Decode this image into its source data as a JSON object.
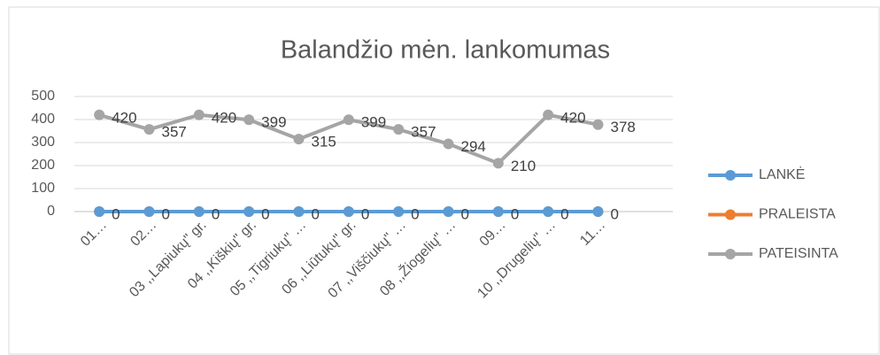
{
  "chart_data": {
    "type": "line",
    "title": "Balandžio mėn. lankomumas",
    "categories": [
      "01…",
      "02…",
      "03 ,,Lapiukų\" gr.",
      "04 ,,Kiškių\" gr.",
      "05 ,,Tigriukų\" …",
      "06 ,,Liūtukų\" gr.",
      "07 ,,Viščiukų\" …",
      "08 ,,Žiogelių\" …",
      "09…",
      "10 ,,Drugelių\" …",
      "11…",
      null
    ],
    "series": [
      {
        "name": "LANKĖ",
        "color": "#5b9bd5",
        "values": [
          0,
          0,
          0,
          0,
          0,
          0,
          0,
          0,
          0,
          0,
          0,
          null
        ],
        "data_labels": true
      },
      {
        "name": "PRALEISTA",
        "color": "#ed7d31",
        "values": [
          0,
          0,
          0,
          0,
          0,
          0,
          0,
          0,
          0,
          0,
          0,
          null
        ],
        "data_labels": false
      },
      {
        "name": "PATEISINTA",
        "color": "#a5a5a5",
        "values": [
          420,
          357,
          420,
          399,
          315,
          399,
          357,
          294,
          210,
          420,
          378,
          null
        ],
        "data_labels": true
      }
    ],
    "ylim": [
      0,
      500
    ],
    "yticks": [
      0,
      100,
      200,
      300,
      400,
      500
    ],
    "grid": true,
    "legend": "right"
  }
}
